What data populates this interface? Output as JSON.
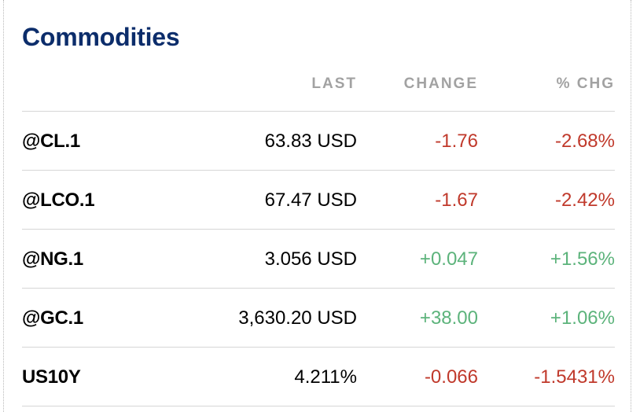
{
  "widget": {
    "title": "Commodities",
    "columns": {
      "last": "LAST",
      "change": "CHANGE",
      "pct_change": "% CHG"
    },
    "colors": {
      "title": "#0c2d6b",
      "header": "#a2a2a2",
      "negative": "#c0392b",
      "positive": "#5cb37b"
    },
    "rows": [
      {
        "symbol": "@CL.1",
        "last": "63.83 USD",
        "change": "-1.76",
        "pct_change": "-2.68%",
        "direction": "neg"
      },
      {
        "symbol": "@LCO.1",
        "last": "67.47 USD",
        "change": "-1.67",
        "pct_change": "-2.42%",
        "direction": "neg"
      },
      {
        "symbol": "@NG.1",
        "last": "3.056 USD",
        "change": "+0.047",
        "pct_change": "+1.56%",
        "direction": "pos"
      },
      {
        "symbol": "@GC.1",
        "last": "3,630.20 USD",
        "change": "+38.00",
        "pct_change": "+1.06%",
        "direction": "pos"
      },
      {
        "symbol": "US10Y",
        "last": "4.211%",
        "change": "-0.066",
        "pct_change": "-1.5431%",
        "direction": "neg"
      }
    ]
  }
}
